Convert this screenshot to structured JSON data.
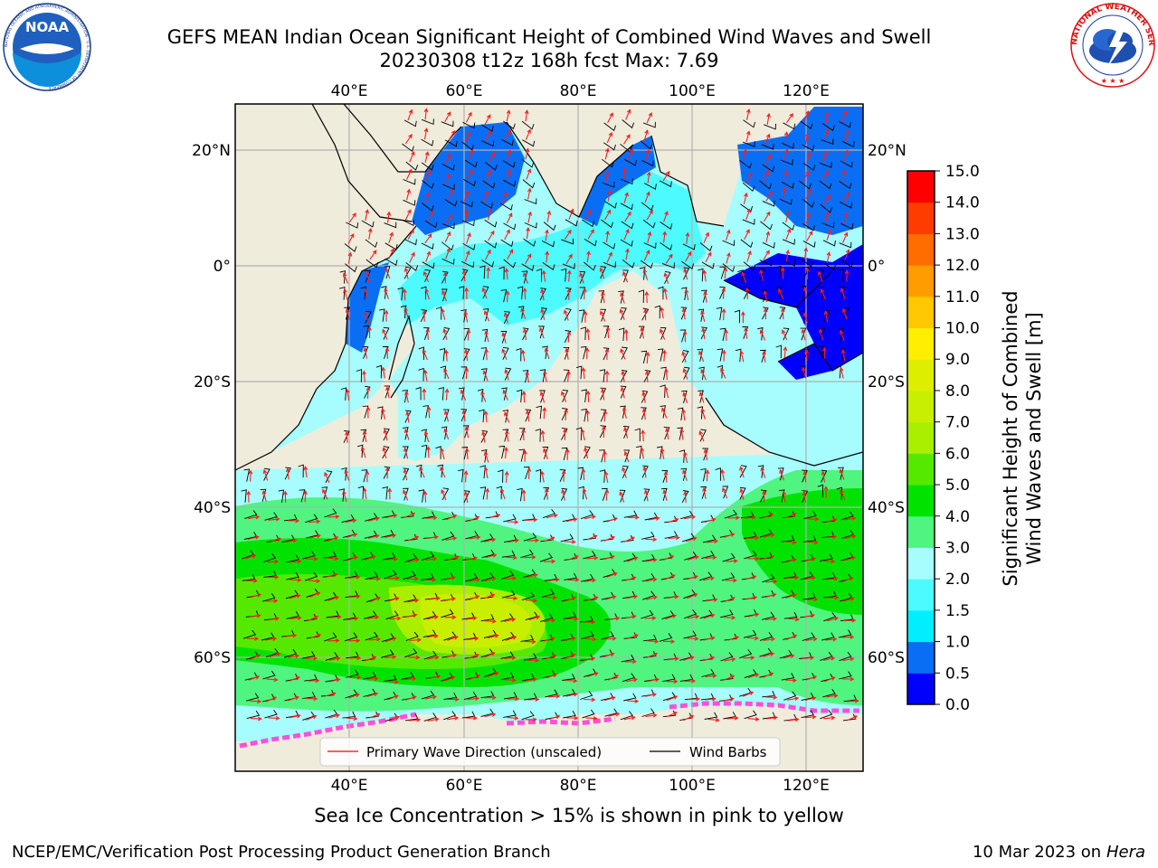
{
  "title_line1": "GEFS MEAN Indian Ocean Significant Height of Combined Wind Waves and Swell",
  "title_line2": "20230308 t12z 168h fcst   Max: 7.69",
  "logos": {
    "left": "NOAA",
    "left_ring": "NATIONAL OCEANIC AND ATMOSPHERIC ADMINISTRATION · U.S. DEPARTMENT OF COMMERCE",
    "right_ring": "NATIONAL WEATHER SERVICE"
  },
  "lon_labels": [
    "40°E",
    "60°E",
    "80°E",
    "100°E",
    "120°E"
  ],
  "lat_labels": [
    "20°N",
    "0°",
    "20°S",
    "40°S",
    "60°S"
  ],
  "legend": {
    "wave_dir": "Primary Wave Direction (unscaled)",
    "wind_barbs": "Wind Barbs"
  },
  "colorbar": {
    "label_line1": "Significant Height of Combined",
    "label_line2": "Wind Waves and Swell [m]",
    "ticks": [
      "0.0",
      "0.5",
      "1.0",
      "1.5",
      "2.0",
      "3.0",
      "4.0",
      "5.0",
      "6.0",
      "7.0",
      "8.0",
      "9.0",
      "10.0",
      "11.0",
      "12.0",
      "13.0",
      "14.0",
      "15.0"
    ],
    "colors": [
      "#0000ff",
      "#0a6ef5",
      "#00eeff",
      "#4dfbff",
      "#a7fdfd",
      "#4ff57f",
      "#00e300",
      "#55e900",
      "#aaee00",
      "#c8ee00",
      "#ddee00",
      "#ffee00",
      "#ffc800",
      "#ff9c00",
      "#ff6c00",
      "#ff3c00",
      "#ff0000"
    ]
  },
  "caption": "Sea Ice Concentration > 15% is shown in pink to yellow",
  "footer_left": "NCEP/EMC/Verification Post Processing Product Generation Branch",
  "footer_date": "10 Mar 2023 on",
  "footer_host": "Hera"
}
